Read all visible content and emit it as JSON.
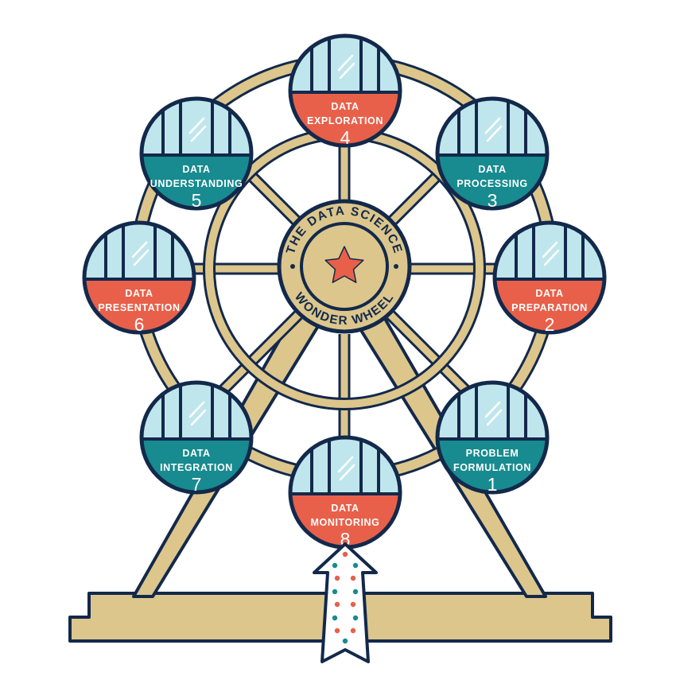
{
  "hub": {
    "top_text": "THE DATA SCIENCE",
    "bottom_text": "WONDER WHEEL"
  },
  "gondolas": [
    {
      "line1": "PROBLEM",
      "line2": "FORMULATION",
      "number": "1"
    },
    {
      "line1": "DATA",
      "line2": "PREPARATION",
      "number": "2"
    },
    {
      "line1": "DATA",
      "line2": "PROCESSING",
      "number": "3"
    },
    {
      "line1": "DATA",
      "line2": "EXPLORATION",
      "number": "4"
    },
    {
      "line1": "DATA",
      "line2": "UNDERSTANDING",
      "number": "5"
    },
    {
      "line1": "DATA",
      "line2": "PRESENTATION",
      "number": "6"
    },
    {
      "line1": "DATA",
      "line2": "INTEGRATION",
      "number": "7"
    },
    {
      "line1": "DATA",
      "line2": "MONITORING",
      "number": "8"
    }
  ],
  "colors": {
    "navy": "#13294b",
    "tan": "#dcc68c",
    "teal": "#178b8f",
    "coral": "#e8604a",
    "glass": "#bfe6ec",
    "white": "#ffffff"
  }
}
